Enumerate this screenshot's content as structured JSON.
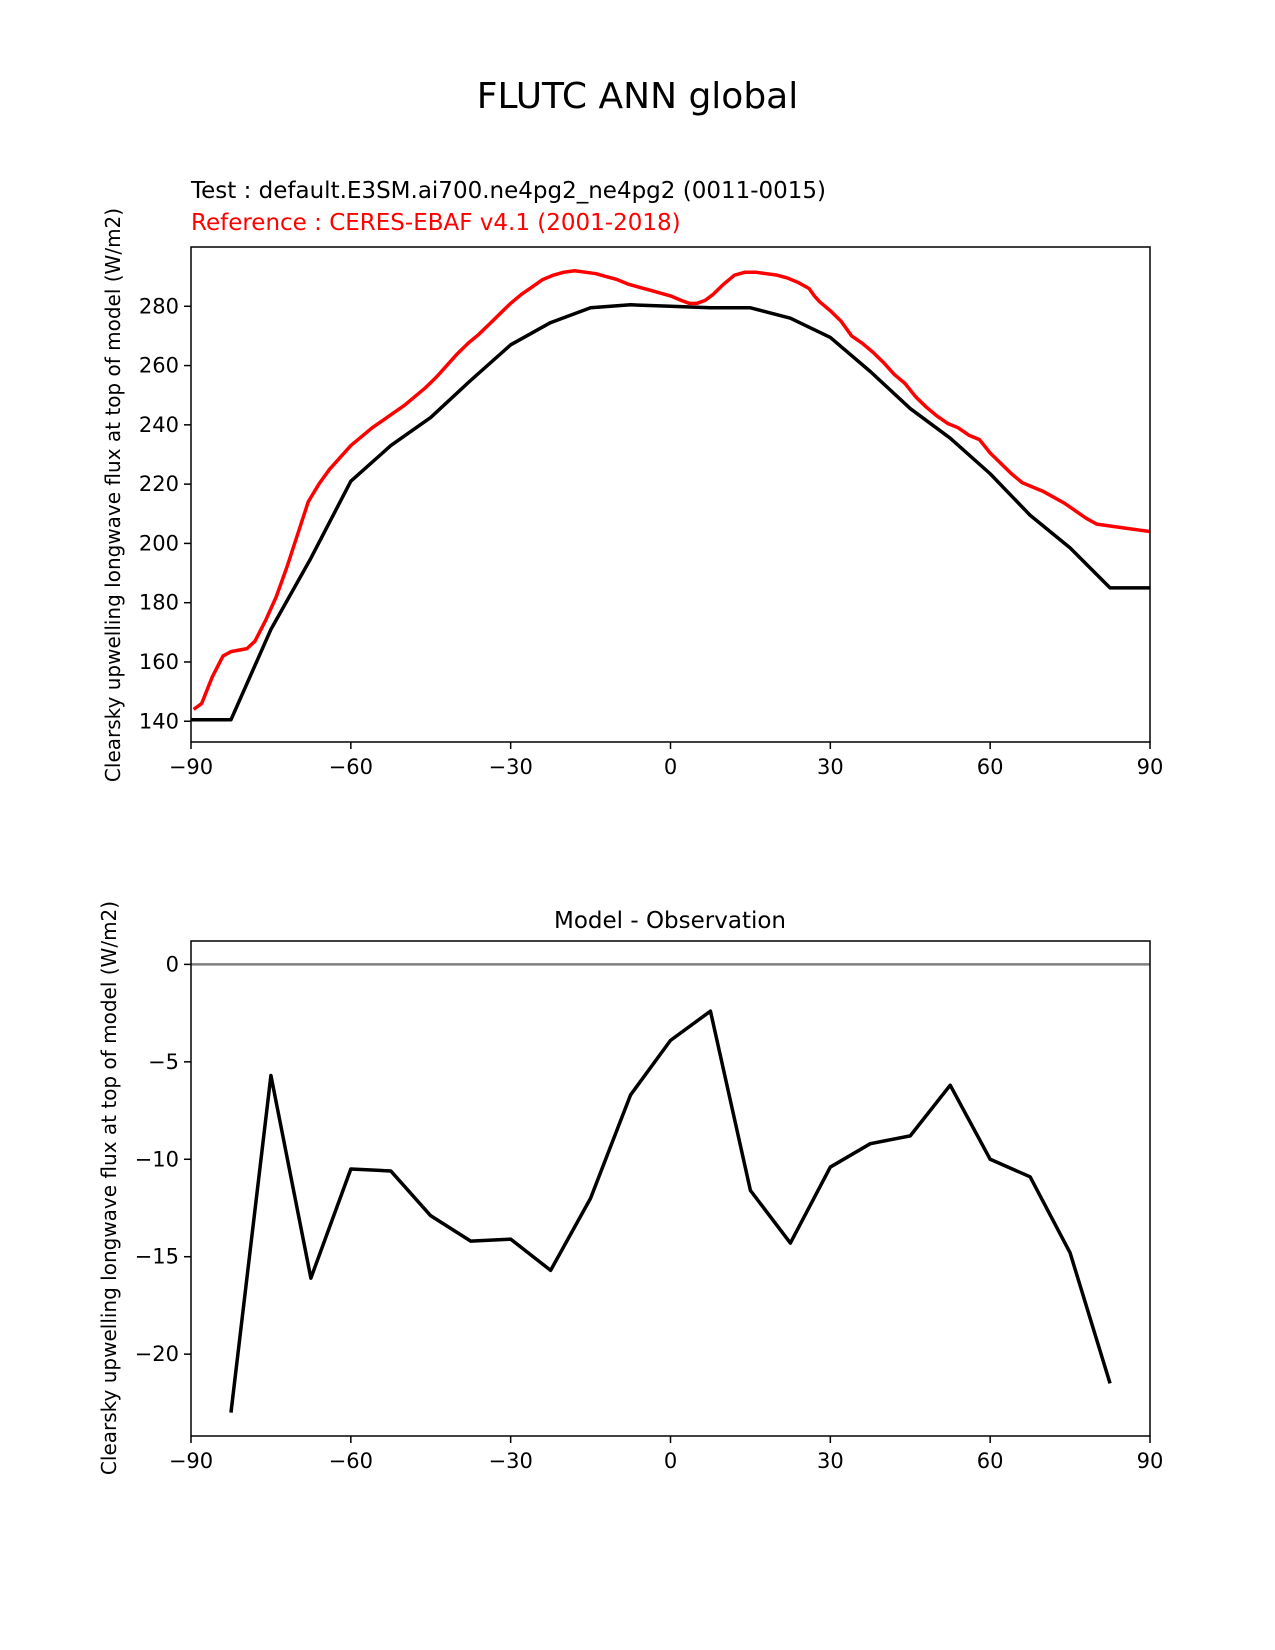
{
  "figure_title": "FLUTC ANN global",
  "chart_data": [
    {
      "type": "line",
      "title_test": "Test : default.E3SM.ai700.ne4pg2_ne4pg2 (0011-0015)",
      "title_reference": "Reference : CERES-EBAF v4.1 (2001-2018)",
      "xlabel": "",
      "ylabel": "Clearsky upwelling longwave flux at top of model (W/m2)",
      "xlim": [
        -90,
        90
      ],
      "ylim": [
        133,
        300
      ],
      "xticks": [
        -90,
        -60,
        -30,
        0,
        30,
        60,
        90
      ],
      "xtick_labels": [
        "−90",
        "−60",
        "−30",
        "0",
        "30",
        "60",
        "90"
      ],
      "yticks": [
        140,
        160,
        180,
        200,
        220,
        240,
        260,
        280
      ],
      "ytick_labels": [
        "140",
        "160",
        "180",
        "200",
        "220",
        "240",
        "260",
        "280"
      ],
      "grid": false,
      "colors": {
        "test": "#000000",
        "reference": "#ff0000"
      },
      "series": [
        {
          "key": "test",
          "x": [
            -90,
            -82.5,
            -75,
            -67.5,
            -60,
            -52.5,
            -45,
            -37.5,
            -30,
            -22.5,
            -15,
            -7.5,
            0,
            7.5,
            15,
            22.5,
            30,
            37.5,
            45,
            52.5,
            60,
            67.5,
            75,
            82.5,
            90
          ],
          "values": [
            140.5,
            140.5,
            171,
            195,
            221,
            233,
            242.5,
            255,
            267,
            274.5,
            279.5,
            280.5,
            280,
            279.5,
            279.5,
            276,
            269.5,
            258,
            245.5,
            235.5,
            223.5,
            209.5,
            198.5,
            185,
            185
          ]
        },
        {
          "key": "reference",
          "x": [
            -89.5,
            -88,
            -86,
            -84,
            -82.5,
            -81,
            -79.5,
            -78,
            -76,
            -74,
            -72,
            -70,
            -68,
            -66,
            -64,
            -62,
            -60,
            -58,
            -56,
            -54,
            -52,
            -50,
            -48,
            -46,
            -44,
            -42,
            -40,
            -38,
            -36,
            -34,
            -32,
            -30,
            -28,
            -26,
            -24,
            -22,
            -20,
            -18,
            -16,
            -14,
            -12,
            -10,
            -8,
            -6,
            -4,
            -2,
            0,
            2,
            3.5,
            5,
            6.5,
            8,
            10,
            12,
            14,
            16,
            18,
            20,
            22,
            24,
            26,
            27,
            28,
            30,
            32,
            34,
            36,
            38,
            40,
            42,
            44,
            46,
            48,
            50,
            52,
            54,
            56,
            58,
            60,
            62,
            64,
            66,
            68,
            70,
            72,
            74,
            76,
            78,
            80,
            82,
            84,
            86,
            88,
            90
          ],
          "values": [
            144,
            146,
            155,
            162,
            163.5,
            164,
            164.5,
            167,
            174,
            182,
            192,
            203,
            214,
            220,
            225,
            229,
            233,
            236,
            239,
            241.5,
            244,
            246.5,
            249.5,
            252.5,
            256,
            260,
            264,
            267.5,
            270.5,
            274,
            277.5,
            281,
            284,
            286.5,
            289,
            290.5,
            291.5,
            292,
            291.5,
            291,
            290,
            289,
            287.5,
            286.5,
            285.5,
            284.5,
            283.5,
            282,
            281,
            281,
            282,
            284,
            287.5,
            290.5,
            291.5,
            291.5,
            291,
            290.5,
            289.5,
            288,
            286,
            283.5,
            281.5,
            278.5,
            275,
            270,
            267.5,
            264.5,
            261,
            257,
            254,
            249.5,
            246,
            243,
            240.5,
            239,
            236.5,
            235,
            230.5,
            227,
            223.5,
            220.5,
            219,
            217.5,
            215.5,
            213.5,
            211,
            208.5,
            206.5,
            206,
            205.5,
            205,
            204.5,
            204
          ]
        }
      ]
    },
    {
      "type": "line",
      "title": "Model - Observation",
      "xlabel": "",
      "ylabel": "Clearsky upwelling longwave flux at top of model (W/m2)",
      "xlim": [
        -90,
        90
      ],
      "ylim": [
        -24.2,
        1.2
      ],
      "xticks": [
        -90,
        -60,
        -30,
        0,
        30,
        60,
        90
      ],
      "xtick_labels": [
        "−90",
        "−60",
        "−30",
        "0",
        "30",
        "60",
        "90"
      ],
      "yticks": [
        0,
        -5,
        -10,
        -15,
        -20
      ],
      "ytick_labels": [
        "0",
        "−5",
        "−10",
        "−15",
        "−20"
      ],
      "grid": false,
      "zero_line": {
        "y": 0,
        "color": "#808080"
      },
      "colors": {
        "diff": "#000000"
      },
      "series": [
        {
          "key": "diff",
          "x": [
            -82.5,
            -75,
            -67.5,
            -60,
            -52.5,
            -45,
            -37.5,
            -30,
            -22.5,
            -15,
            -7.5,
            0,
            7.5,
            15,
            22.5,
            30,
            37.5,
            45,
            52.5,
            60,
            67.5,
            75,
            82.5
          ],
          "values": [
            -23,
            -5.7,
            -16.1,
            -10.5,
            -10.6,
            -12.9,
            -14.2,
            -14.1,
            -15.7,
            -12,
            -6.7,
            -3.9,
            -2.4,
            -11.6,
            -14.3,
            -10.4,
            -9.2,
            -8.8,
            -6.2,
            -10,
            -10.9,
            -14.8,
            -21.5
          ]
        }
      ]
    }
  ]
}
